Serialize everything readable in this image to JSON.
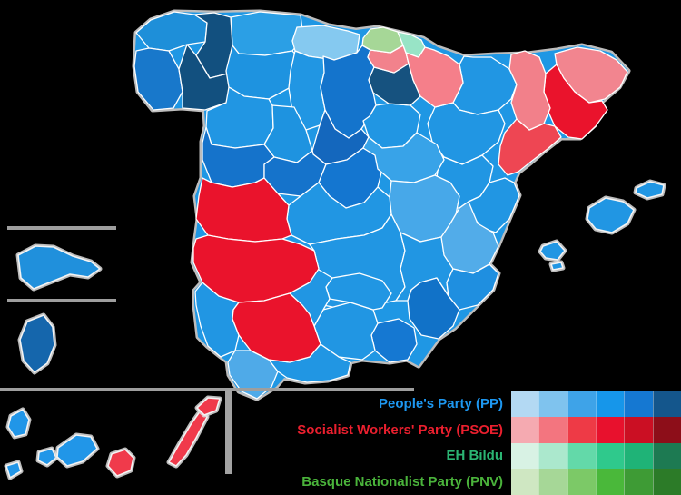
{
  "map": {
    "background_color": "#000000",
    "province_border_color": "#ffffff",
    "coast_halo_color": "#dedede",
    "inset_rule_color": "#9e9e9e",
    "provinces": [
      {
        "id": "asturias",
        "name": "Asturias",
        "party": "PP",
        "color": "#2b9fe5"
      },
      {
        "id": "cantabria",
        "name": "Cantabria",
        "party": "PP",
        "color": "#85c9f0"
      },
      {
        "id": "a_coruna",
        "name": "A Coruña",
        "party": "PP",
        "color": "#1e8fd9"
      },
      {
        "id": "lugo",
        "name": "Lugo",
        "party": "PP",
        "color": "#12507f"
      },
      {
        "id": "pontevedra",
        "name": "Pontevedra",
        "party": "PP",
        "color": "#1878cb"
      },
      {
        "id": "ourense",
        "name": "Ourense",
        "party": "PP",
        "color": "#12507f"
      },
      {
        "id": "leon",
        "name": "León",
        "party": "PP",
        "color": "#1e93e0"
      },
      {
        "id": "palencia",
        "name": "Palencia",
        "party": "PP",
        "color": "#2196e3"
      },
      {
        "id": "burgos",
        "name": "Burgos",
        "party": "PP",
        "color": "#1474cc"
      },
      {
        "id": "zamora",
        "name": "Zamora",
        "party": "PP",
        "color": "#2196e3"
      },
      {
        "id": "valladolid",
        "name": "Valladolid",
        "party": "PP",
        "color": "#1e93e0"
      },
      {
        "id": "soria",
        "name": "Soria",
        "party": "PP",
        "color": "#2196e3"
      },
      {
        "id": "segovia",
        "name": "Segovia",
        "party": "PP",
        "color": "#1467bd"
      },
      {
        "id": "salamanca",
        "name": "Salamanca",
        "party": "PP",
        "color": "#1573cb"
      },
      {
        "id": "avila",
        "name": "Ávila",
        "party": "PP",
        "color": "#1573cb"
      },
      {
        "id": "la_rioja",
        "name": "La Rioja",
        "party": "PP",
        "color": "#16527f"
      },
      {
        "id": "huesca",
        "name": "Huesca",
        "party": "PP",
        "color": "#2196e3"
      },
      {
        "id": "zaragoza",
        "name": "Zaragoza",
        "party": "PP",
        "color": "#2196e3"
      },
      {
        "id": "teruel",
        "name": "Teruel",
        "party": "PP",
        "color": "#2196e3"
      },
      {
        "id": "madrid",
        "name": "Madrid",
        "party": "PP",
        "color": "#1476d0"
      },
      {
        "id": "guadalajara",
        "name": "Guadalajara",
        "party": "PP",
        "color": "#38a3e8"
      },
      {
        "id": "cuenca",
        "name": "Cuenca",
        "party": "PP",
        "color": "#47a8e9"
      },
      {
        "id": "toledo",
        "name": "Toledo",
        "party": "PP",
        "color": "#2196e3"
      },
      {
        "id": "ciudad_real",
        "name": "Ciudad Real",
        "party": "PP",
        "color": "#2196e3"
      },
      {
        "id": "albacete",
        "name": "Albacete",
        "party": "PP",
        "color": "#2196e3"
      },
      {
        "id": "castellon",
        "name": "Castellón",
        "party": "PP",
        "color": "#2196e3"
      },
      {
        "id": "valencia",
        "name": "Valencia",
        "party": "PP",
        "color": "#52ace9"
      },
      {
        "id": "alicante",
        "name": "Alicante",
        "party": "PP",
        "color": "#1f8fe0"
      },
      {
        "id": "murcia",
        "name": "Murcia",
        "party": "PP",
        "color": "#1172c8"
      },
      {
        "id": "almeria",
        "name": "Almería",
        "party": "PP",
        "color": "#1578d2"
      },
      {
        "id": "granada",
        "name": "Granada",
        "party": "PP",
        "color": "#2196e3"
      },
      {
        "id": "jaen",
        "name": "Jaén",
        "party": "PP",
        "color": "#2196e3"
      },
      {
        "id": "cordoba",
        "name": "Córdoba",
        "party": "PP",
        "color": "#2196e3"
      },
      {
        "id": "huelva",
        "name": "Huelva",
        "party": "PP",
        "color": "#2196e3"
      },
      {
        "id": "cadiz",
        "name": "Cádiz",
        "party": "PP",
        "color": "#4faae8"
      },
      {
        "id": "malaga",
        "name": "Málaga",
        "party": "PP",
        "color": "#2196e3"
      },
      {
        "id": "caceres",
        "name": "Cáceres",
        "party": "PSOE",
        "color": "#ea132c"
      },
      {
        "id": "badajoz",
        "name": "Badajoz",
        "party": "PSOE",
        "color": "#ea132c"
      },
      {
        "id": "sevilla",
        "name": "Sevilla",
        "party": "PSOE",
        "color": "#ea132c"
      },
      {
        "id": "barcelona",
        "name": "Barcelona",
        "party": "PSOE",
        "color": "#ea132c"
      },
      {
        "id": "tarragona",
        "name": "Tarragona",
        "party": "PSOE",
        "color": "#ee4653"
      },
      {
        "id": "lleida",
        "name": "Lleida",
        "party": "PSOE",
        "color": "#f2808a"
      },
      {
        "id": "girona",
        "name": "Girona",
        "party": "PSOE",
        "color": "#f2858f"
      },
      {
        "id": "alava",
        "name": "Álava",
        "party": "PSOE",
        "color": "#f2828c"
      },
      {
        "id": "navarra",
        "name": "Navarra",
        "party": "PSOE",
        "color": "#f57f8a"
      },
      {
        "id": "bizkaia",
        "name": "Bizkaia",
        "party": "PNV",
        "color": "#a6d797"
      },
      {
        "id": "gipuzkoa",
        "name": "Gipuzkoa",
        "party": "EH Bildu",
        "color": "#98e4c6"
      },
      {
        "id": "mallorca",
        "name": "Balearic Islands (Mallorca)",
        "party": "PP",
        "color": "#2196e3"
      },
      {
        "id": "menorca",
        "name": "Balearic Islands (Menorca)",
        "party": "PP",
        "color": "#2196e3"
      },
      {
        "id": "ibiza",
        "name": "Balearic Islands (Ibiza)",
        "party": "PP",
        "color": "#2196e3"
      },
      {
        "id": "formentera",
        "name": "Balearic Islands (Formentera)",
        "party": "PP",
        "color": "#2196e3"
      },
      {
        "id": "la_palma",
        "name": "Santa Cruz de Tenerife (La Palma)",
        "party": "PP",
        "color": "#2196e8"
      },
      {
        "id": "el_hierro",
        "name": "Santa Cruz de Tenerife (El Hierro)",
        "party": "PP",
        "color": "#2196e8"
      },
      {
        "id": "la_gomera",
        "name": "Santa Cruz de Tenerife (La Gomera)",
        "party": "PP",
        "color": "#2196e8"
      },
      {
        "id": "tenerife",
        "name": "Santa Cruz de Tenerife (Tenerife)",
        "party": "PP",
        "color": "#2196e8"
      },
      {
        "id": "gran_canaria",
        "name": "Las Palmas (Gran Canaria)",
        "party": "PSOE",
        "color": "#f03a4b"
      },
      {
        "id": "fuerteventura",
        "name": "Las Palmas (Fuerteventura)",
        "party": "PSOE",
        "color": "#f03a4b"
      },
      {
        "id": "lanzarote",
        "name": "Las Palmas (Lanzarote)",
        "party": "PSOE",
        "color": "#f03a4b"
      },
      {
        "id": "ceuta",
        "name": "Ceuta",
        "party": "PP",
        "color": "#2090dc"
      },
      {
        "id": "melilla",
        "name": "Melilla",
        "party": "PP",
        "color": "#1566ac"
      }
    ]
  },
  "legend": {
    "entries": [
      {
        "label": "People's Party (PP)",
        "text_color": "#1d97f0",
        "swatches": [
          "#b3d9f3",
          "#7fc3ee",
          "#3ea3e8",
          "#1696ea",
          "#1578d2",
          "#14568c"
        ]
      },
      {
        "label": "Socialist Workers' Party (PSOE)",
        "text_color": "#ea1f2e",
        "swatches": [
          "#f5aab1",
          "#f3757f",
          "#ee3a46",
          "#e8112d",
          "#cb0f23",
          "#8d0e19"
        ]
      },
      {
        "label": "EH Bildu",
        "text_color": "#2bb573",
        "swatches": [
          "#d8f2e4",
          "#abe8cd",
          "#63d9a9",
          "#2fc98c",
          "#1fb377",
          "#1d7a52"
        ]
      },
      {
        "label": "Basque Nationalist Party (PNV)",
        "text_color": "#4ab33b",
        "swatches": [
          "#cfe7c2",
          "#a6d797",
          "#7cc967",
          "#4ab83a",
          "#3e9b35",
          "#2c7b28"
        ]
      }
    ]
  }
}
